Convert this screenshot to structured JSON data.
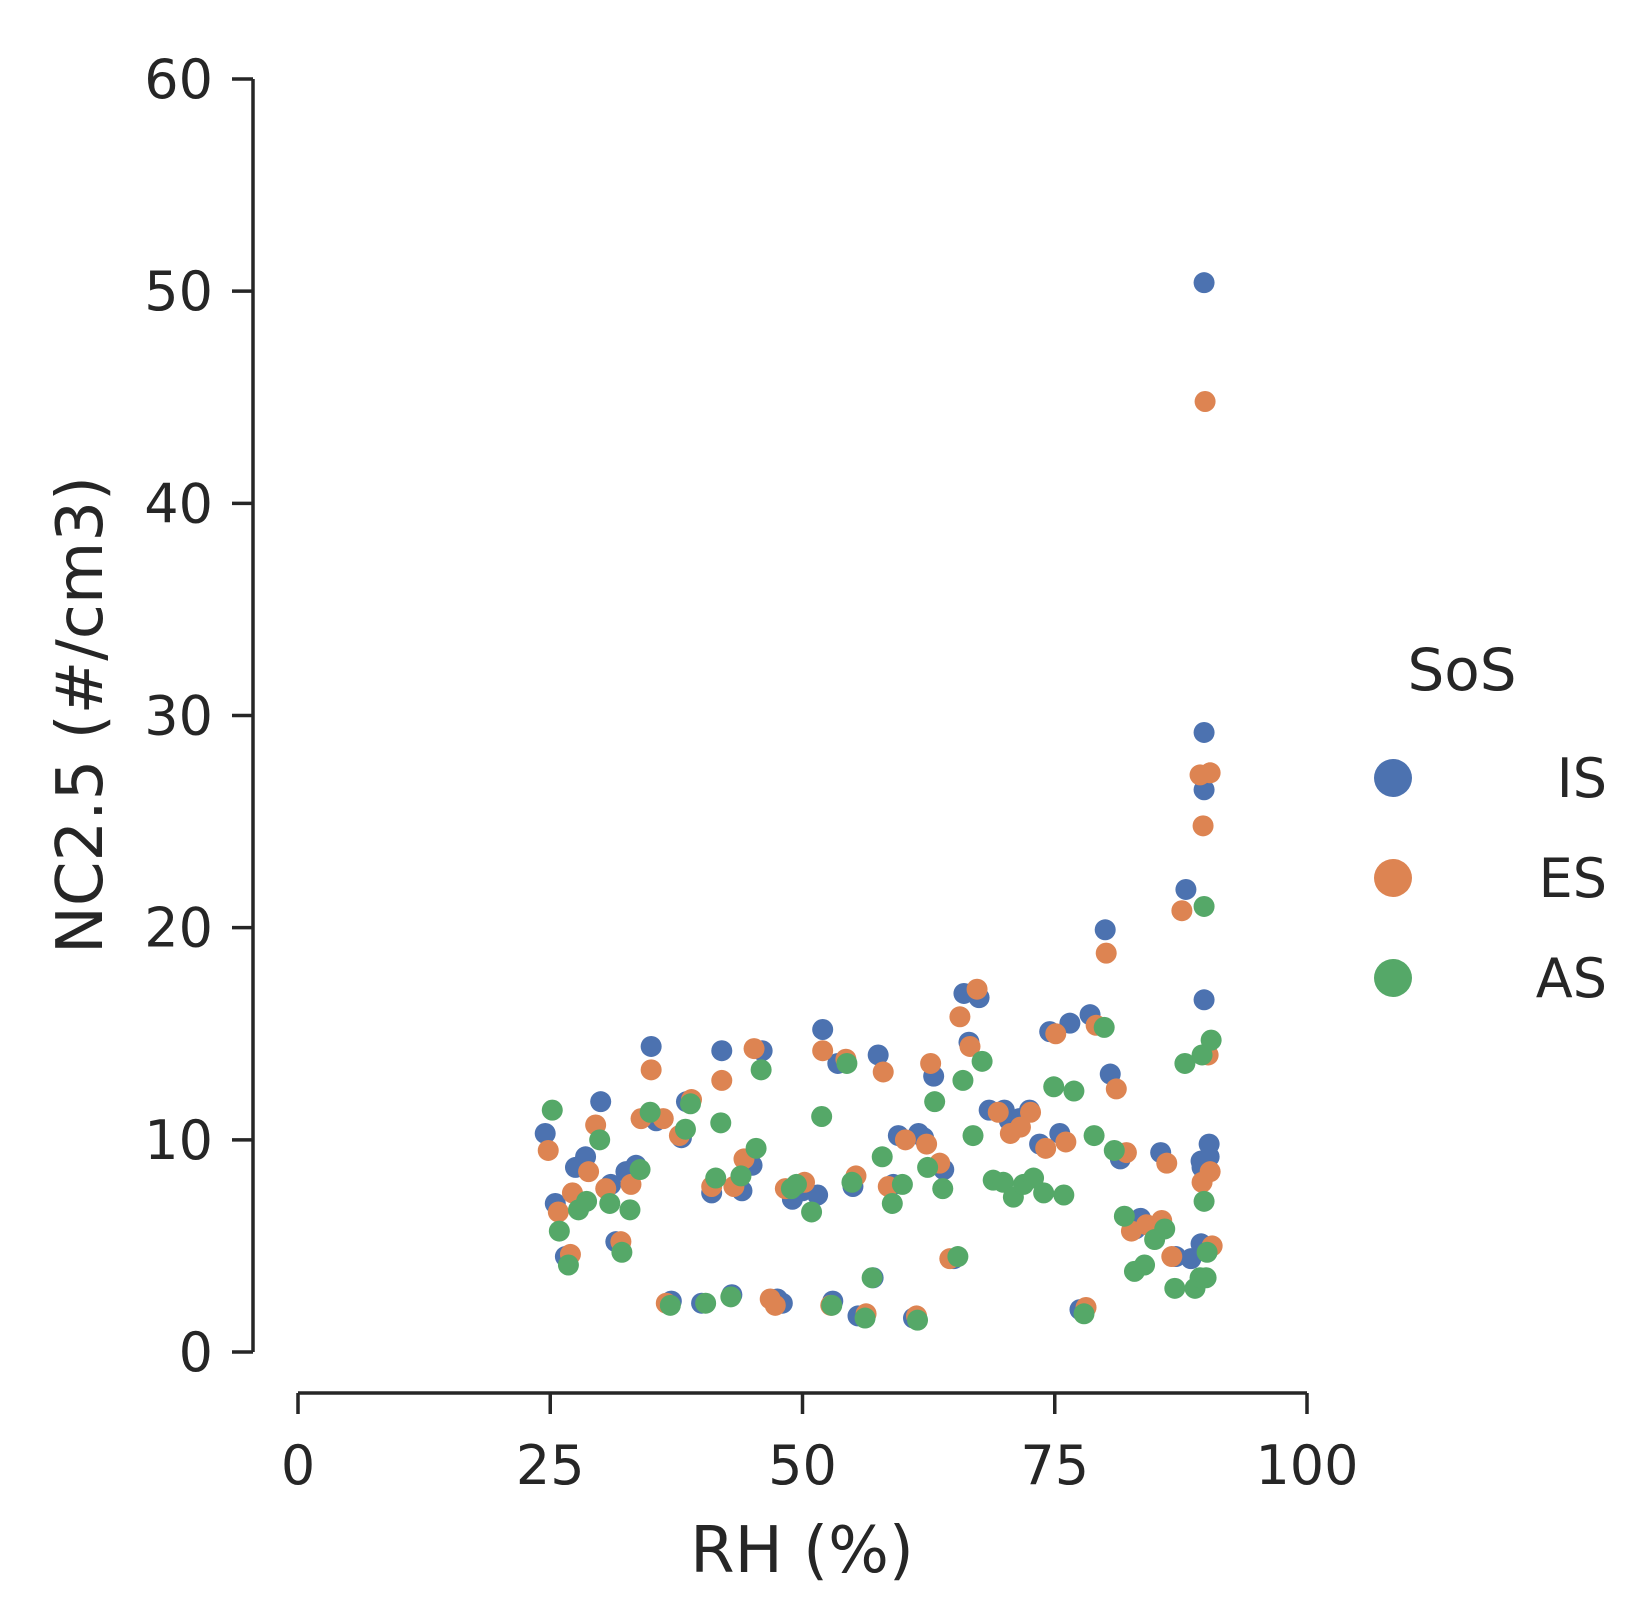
{
  "chart_data": {
    "type": "scatter",
    "xlabel": "RH (%)",
    "ylabel": "NC2.5 (#/cm3)",
    "xlim": [
      0,
      100
    ],
    "ylim": [
      0,
      60
    ],
    "xticks": [
      0,
      25,
      50,
      75,
      100
    ],
    "yticks": [
      0,
      10,
      20,
      30,
      40,
      50,
      60
    ],
    "grid": false,
    "legend": {
      "title": "SoS",
      "placement": "right"
    },
    "series": [
      {
        "name": "IS",
        "color": "#4c72b0",
        "points": [
          [
            24.5,
            10.3
          ],
          [
            25.5,
            7.0
          ],
          [
            26.5,
            4.5
          ],
          [
            27.5,
            8.7
          ],
          [
            28.5,
            9.2
          ],
          [
            30.0,
            11.8
          ],
          [
            31.0,
            7.9
          ],
          [
            31.5,
            5.2
          ],
          [
            32.5,
            8.5
          ],
          [
            33.5,
            8.8
          ],
          [
            35.0,
            14.4
          ],
          [
            35.5,
            10.9
          ],
          [
            37.0,
            2.4
          ],
          [
            38.0,
            10.1
          ],
          [
            38.5,
            11.8
          ],
          [
            40.0,
            2.3
          ],
          [
            41.0,
            7.5
          ],
          [
            42.0,
            14.2
          ],
          [
            43.0,
            2.7
          ],
          [
            44.0,
            7.6
          ],
          [
            45.0,
            8.8
          ],
          [
            46.0,
            14.2
          ],
          [
            47.5,
            2.5
          ],
          [
            48.0,
            2.3
          ],
          [
            49.0,
            7.2
          ],
          [
            50.0,
            7.6
          ],
          [
            51.5,
            7.4
          ],
          [
            52.0,
            15.2
          ],
          [
            53.0,
            2.4
          ],
          [
            53.5,
            13.6
          ],
          [
            55.0,
            7.8
          ],
          [
            55.5,
            1.7
          ],
          [
            57.0,
            3.5
          ],
          [
            57.5,
            14.0
          ],
          [
            59.0,
            7.9
          ],
          [
            59.5,
            10.2
          ],
          [
            61.0,
            1.6
          ],
          [
            61.5,
            10.3
          ],
          [
            62.0,
            10.1
          ],
          [
            63.0,
            13.0
          ],
          [
            64.0,
            8.6
          ],
          [
            65.0,
            4.4
          ],
          [
            66.0,
            16.9
          ],
          [
            66.5,
            14.6
          ],
          [
            67.5,
            16.7
          ],
          [
            68.5,
            11.4
          ],
          [
            70.0,
            11.4
          ],
          [
            70.5,
            10.9
          ],
          [
            71.5,
            11.0
          ],
          [
            72.5,
            11.4
          ],
          [
            73.5,
            9.8
          ],
          [
            74.5,
            15.1
          ],
          [
            75.5,
            10.3
          ],
          [
            76.5,
            15.5
          ],
          [
            77.5,
            2.0
          ],
          [
            78.5,
            15.9
          ],
          [
            80.0,
            19.9
          ],
          [
            80.5,
            13.1
          ],
          [
            81.5,
            9.1
          ],
          [
            83.0,
            5.8
          ],
          [
            83.5,
            6.3
          ],
          [
            85.5,
            9.4
          ],
          [
            87.0,
            4.5
          ],
          [
            88.0,
            21.8
          ],
          [
            88.5,
            4.4
          ],
          [
            89.5,
            5.1
          ],
          [
            89.5,
            9.0
          ],
          [
            89.8,
            50.4
          ],
          [
            89.8,
            29.2
          ],
          [
            89.8,
            26.5
          ],
          [
            89.8,
            16.6
          ],
          [
            90.3,
            9.8
          ],
          [
            90.3,
            9.2
          ],
          [
            89.6,
            8.7
          ]
        ]
      },
      {
        "name": "ES",
        "color": "#dd8452",
        "points": [
          [
            24.8,
            9.5
          ],
          [
            25.8,
            6.6
          ],
          [
            27.0,
            4.6
          ],
          [
            27.2,
            7.5
          ],
          [
            28.8,
            8.5
          ],
          [
            29.5,
            10.7
          ],
          [
            30.5,
            7.7
          ],
          [
            32.0,
            5.2
          ],
          [
            33.0,
            7.9
          ],
          [
            34.0,
            11.0
          ],
          [
            35.0,
            13.3
          ],
          [
            36.2,
            11.0
          ],
          [
            36.5,
            2.3
          ],
          [
            37.8,
            10.2
          ],
          [
            39.0,
            11.9
          ],
          [
            41.0,
            7.8
          ],
          [
            42.0,
            12.8
          ],
          [
            43.2,
            7.8
          ],
          [
            44.2,
            9.1
          ],
          [
            45.2,
            14.3
          ],
          [
            46.8,
            2.5
          ],
          [
            47.3,
            2.2
          ],
          [
            48.3,
            7.7
          ],
          [
            50.2,
            8.0
          ],
          [
            52.0,
            14.2
          ],
          [
            52.8,
            2.2
          ],
          [
            54.3,
            13.8
          ],
          [
            55.3,
            8.3
          ],
          [
            56.3,
            1.8
          ],
          [
            58.0,
            13.2
          ],
          [
            58.5,
            7.8
          ],
          [
            60.2,
            10.0
          ],
          [
            61.3,
            1.7
          ],
          [
            62.3,
            9.8
          ],
          [
            62.7,
            13.6
          ],
          [
            63.6,
            8.9
          ],
          [
            64.6,
            4.4
          ],
          [
            65.6,
            15.8
          ],
          [
            66.6,
            14.4
          ],
          [
            67.3,
            17.1
          ],
          [
            69.4,
            11.3
          ],
          [
            70.6,
            10.3
          ],
          [
            71.6,
            10.6
          ],
          [
            72.6,
            11.3
          ],
          [
            74.1,
            9.6
          ],
          [
            75.1,
            15.0
          ],
          [
            76.1,
            9.9
          ],
          [
            78.1,
            2.1
          ],
          [
            79.1,
            15.4
          ],
          [
            80.1,
            18.8
          ],
          [
            81.1,
            12.4
          ],
          [
            82.1,
            9.4
          ],
          [
            82.6,
            5.7
          ],
          [
            84.1,
            6.0
          ],
          [
            85.6,
            6.2
          ],
          [
            86.1,
            8.9
          ],
          [
            86.6,
            4.5
          ],
          [
            87.6,
            20.8
          ],
          [
            89.4,
            27.2
          ],
          [
            89.6,
            8.0
          ],
          [
            89.7,
            24.8
          ],
          [
            89.9,
            44.8
          ],
          [
            90.4,
            27.3
          ],
          [
            90.2,
            14.0
          ],
          [
            90.4,
            8.5
          ],
          [
            90.6,
            5.0
          ]
        ]
      },
      {
        "name": "AS",
        "color": "#55a868",
        "points": [
          [
            25.2,
            11.4
          ],
          [
            25.9,
            5.7
          ],
          [
            26.8,
            4.1
          ],
          [
            27.8,
            6.7
          ],
          [
            28.6,
            7.1
          ],
          [
            29.9,
            10.0
          ],
          [
            30.9,
            7.0
          ],
          [
            32.1,
            4.7
          ],
          [
            32.9,
            6.7
          ],
          [
            33.9,
            8.6
          ],
          [
            34.9,
            11.3
          ],
          [
            36.9,
            2.2
          ],
          [
            38.4,
            10.5
          ],
          [
            38.9,
            11.7
          ],
          [
            40.4,
            2.3
          ],
          [
            41.4,
            8.2
          ],
          [
            41.9,
            10.8
          ],
          [
            42.9,
            2.6
          ],
          [
            43.9,
            8.3
          ],
          [
            45.4,
            9.6
          ],
          [
            45.9,
            13.3
          ],
          [
            48.9,
            7.7
          ],
          [
            49.4,
            7.9
          ],
          [
            50.9,
            6.6
          ],
          [
            51.9,
            11.1
          ],
          [
            52.9,
            2.2
          ],
          [
            54.4,
            13.6
          ],
          [
            54.9,
            8.0
          ],
          [
            56.2,
            1.6
          ],
          [
            56.9,
            3.5
          ],
          [
            57.9,
            9.2
          ],
          [
            58.9,
            7.0
          ],
          [
            59.9,
            7.9
          ],
          [
            61.4,
            1.5
          ],
          [
            62.4,
            8.7
          ],
          [
            63.1,
            11.8
          ],
          [
            63.9,
            7.7
          ],
          [
            65.4,
            4.5
          ],
          [
            65.9,
            12.8
          ],
          [
            66.9,
            10.2
          ],
          [
            67.8,
            13.7
          ],
          [
            68.9,
            8.1
          ],
          [
            69.9,
            8.0
          ],
          [
            70.9,
            7.3
          ],
          [
            71.9,
            7.9
          ],
          [
            72.9,
            8.2
          ],
          [
            73.9,
            7.5
          ],
          [
            74.9,
            12.5
          ],
          [
            75.9,
            7.4
          ],
          [
            76.9,
            12.3
          ],
          [
            77.9,
            1.8
          ],
          [
            78.9,
            10.2
          ],
          [
            79.9,
            15.3
          ],
          [
            80.9,
            9.5
          ],
          [
            81.9,
            6.4
          ],
          [
            82.9,
            3.8
          ],
          [
            83.9,
            4.1
          ],
          [
            84.9,
            5.3
          ],
          [
            85.9,
            5.8
          ],
          [
            86.9,
            3.0
          ],
          [
            87.9,
            13.6
          ],
          [
            88.9,
            3.0
          ],
          [
            89.4,
            3.5
          ],
          [
            89.6,
            14.0
          ],
          [
            89.8,
            7.1
          ],
          [
            89.8,
            21.0
          ],
          [
            90.0,
            3.5
          ],
          [
            90.1,
            4.7
          ],
          [
            90.5,
            14.7
          ]
        ]
      }
    ]
  }
}
